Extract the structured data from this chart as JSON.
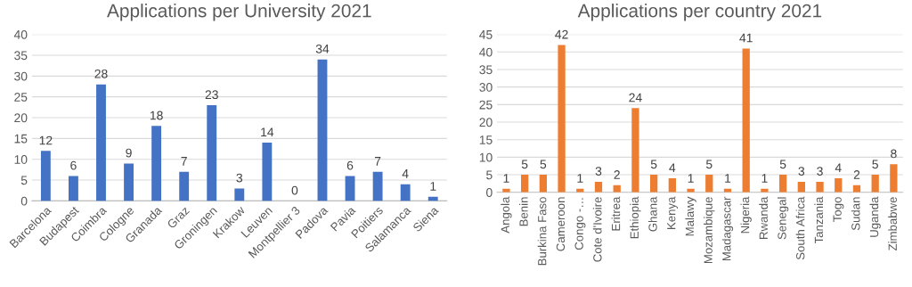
{
  "chart_data": [
    {
      "type": "bar",
      "title": "Applications per University 2021",
      "categories": [
        "Barcelona",
        "Budapest",
        "Coimbra",
        "Cologne",
        "Granada",
        "Graz",
        "Groningen",
        "Krakow",
        "Leuven",
        "Montpellier 3",
        "Padova",
        "Pavia",
        "Poitiers",
        "Salamanca",
        "Siena"
      ],
      "values": [
        12,
        6,
        28,
        9,
        18,
        7,
        23,
        3,
        14,
        0,
        34,
        6,
        7,
        4,
        1
      ],
      "color": "#4472c4",
      "ylim": [
        0,
        40
      ],
      "yticks": [
        0,
        5,
        10,
        15,
        20,
        25,
        30,
        35,
        40
      ],
      "grid": "y",
      "data_labels": true
    },
    {
      "type": "bar",
      "title": "Applications per country 2021",
      "categories": [
        "Angola",
        "Benin",
        "Burkina Faso",
        "Cameroon",
        "Congo -…",
        "Cote d'Ivoire",
        "Eritrea",
        "Ethiopia",
        "Ghana",
        "Kenya",
        "Malawy",
        "Mozambique",
        "Madagascar",
        "Nigeria",
        "Rwanda",
        "Senegal",
        "South Africa",
        "Tanzania",
        "Togo",
        "Sudan",
        "Uganda",
        "Zimbabwe"
      ],
      "values": [
        1,
        5,
        5,
        42,
        1,
        3,
        2,
        24,
        5,
        4,
        1,
        5,
        1,
        41,
        1,
        5,
        3,
        3,
        4,
        2,
        5,
        8
      ],
      "color": "#ed7d31",
      "ylim": [
        0,
        45
      ],
      "yticks": [
        0,
        5,
        10,
        15,
        20,
        25,
        30,
        35,
        40,
        45
      ],
      "grid": "y",
      "data_labels": true
    }
  ]
}
